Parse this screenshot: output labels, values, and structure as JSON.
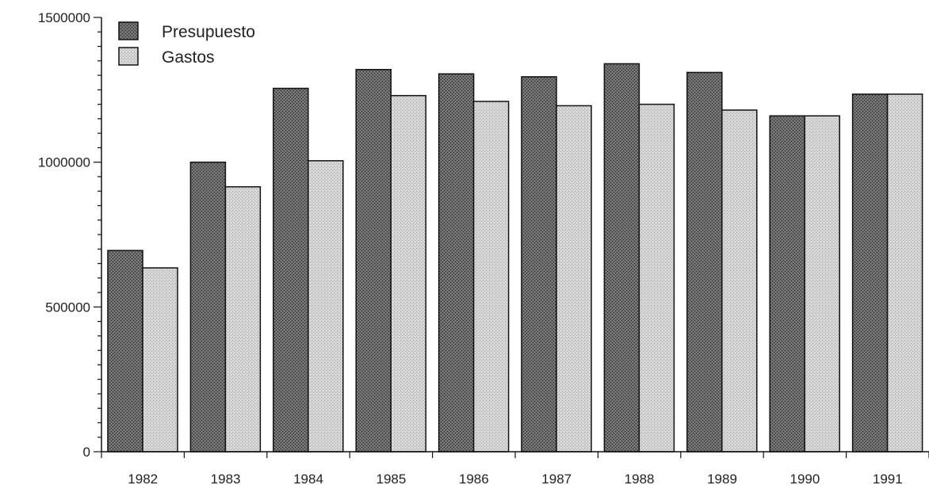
{
  "chart_data": {
    "type": "bar",
    "title": "",
    "xlabel": "",
    "ylabel": "",
    "categories": [
      "1982",
      "1983",
      "1984",
      "1985",
      "1986",
      "1987",
      "1988",
      "1989",
      "1990",
      "1991"
    ],
    "series": [
      {
        "name": "Presupuesto",
        "color": "#5e5e5e",
        "values": [
          695000,
          1000000,
          1255000,
          1320000,
          1305000,
          1295000,
          1340000,
          1310000,
          1160000,
          1235000
        ]
      },
      {
        "name": "Gastos",
        "color": "#c8c8c8",
        "values": [
          635000,
          915000,
          1005000,
          1230000,
          1210000,
          1195000,
          1200000,
          1180000,
          1160000,
          1235000
        ]
      }
    ],
    "ylim": [
      0,
      1500000
    ],
    "yticks": [
      0,
      500000,
      1000000,
      1500000
    ],
    "ytick_labels": [
      "0",
      "500000",
      "1000000",
      "1500000"
    ],
    "grid": false,
    "legend_position": "top-left"
  }
}
